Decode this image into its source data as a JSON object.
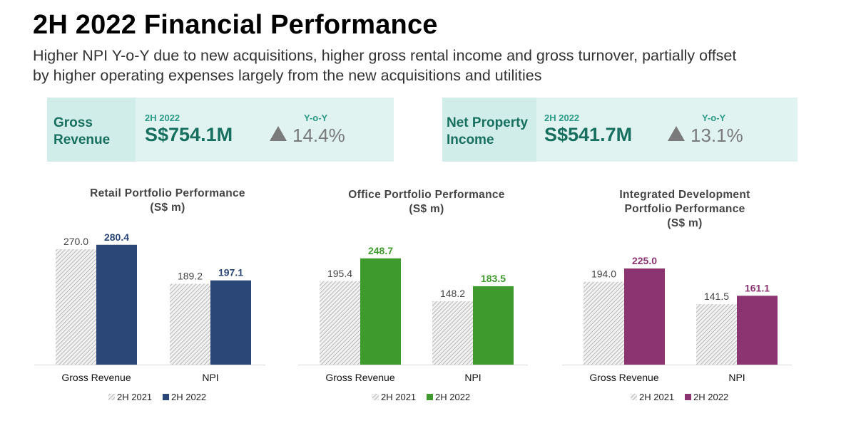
{
  "header": {
    "title": "2H 2022 Financial Performance",
    "subtitle_line1": "Higher NPI Y-o-Y due to new acquisitions, higher gross rental income and gross turnover, partially offset",
    "subtitle_line2": "by higher operating expenses largely from the new acquisitions and utilities"
  },
  "kpis": [
    {
      "label_line1": "Gross",
      "label_line2": "Revenue",
      "period": "2H 2022",
      "value": "S$754.1M",
      "yoy_label": "Y-o-Y",
      "yoy_value": "14.4%",
      "yoy_icon": "up-triangle-icon"
    },
    {
      "label_line1": "Net Property",
      "label_line2": "Income",
      "period": "2H 2022",
      "value": "S$541.7M",
      "yoy_label": "Y-o-Y",
      "yoy_value": "13.1%",
      "yoy_icon": "up-triangle-icon"
    }
  ],
  "colors": {
    "kpi_bg": "#e0f3f1",
    "kpi_label_bg": "#d0ede9",
    "kpi_text": "#17705f",
    "hatch": "#b8b8b8",
    "retail": "#2b4778",
    "office": "#3f9a2d",
    "integrated": "#8c3372"
  },
  "chart_data": [
    {
      "type": "bar",
      "title_lines": [
        "Retail Portfolio Performance",
        "(S$ m)"
      ],
      "categories": [
        "Gross Revenue",
        "NPI"
      ],
      "series": [
        {
          "name": "2H 2021",
          "values": [
            270.0,
            189.2
          ],
          "color": "#b8b8b8",
          "pattern": "hatch"
        },
        {
          "name": "2H 2022",
          "values": [
            280.4,
            197.1
          ],
          "color": "#2b4778",
          "pattern": "solid"
        }
      ],
      "ylim": [
        0,
        300
      ],
      "legend": "bottom",
      "grid": false
    },
    {
      "type": "bar",
      "title_lines": [
        "Office Portfolio Performance",
        "(S$ m)"
      ],
      "categories": [
        "Gross Revenue",
        "NPI"
      ],
      "series": [
        {
          "name": "2H 2021",
          "values": [
            195.4,
            148.2
          ],
          "color": "#b8b8b8",
          "pattern": "hatch"
        },
        {
          "name": "2H 2022",
          "values": [
            248.7,
            183.5
          ],
          "color": "#3f9a2d",
          "pattern": "solid"
        }
      ],
      "ylim": [
        0,
        300
      ],
      "legend": "bottom",
      "grid": false
    },
    {
      "type": "bar",
      "title_lines": [
        "Integrated Development",
        "Portfolio Performance",
        "(S$ m)"
      ],
      "categories": [
        "Gross Revenue",
        "NPI"
      ],
      "series": [
        {
          "name": "2H 2021",
          "values": [
            194.0,
            141.5
          ],
          "color": "#b8b8b8",
          "pattern": "hatch"
        },
        {
          "name": "2H 2022",
          "values": [
            225.0,
            161.1
          ],
          "color": "#8c3372",
          "pattern": "solid"
        }
      ],
      "ylim": [
        0,
        300
      ],
      "legend": "bottom",
      "grid": false
    }
  ]
}
